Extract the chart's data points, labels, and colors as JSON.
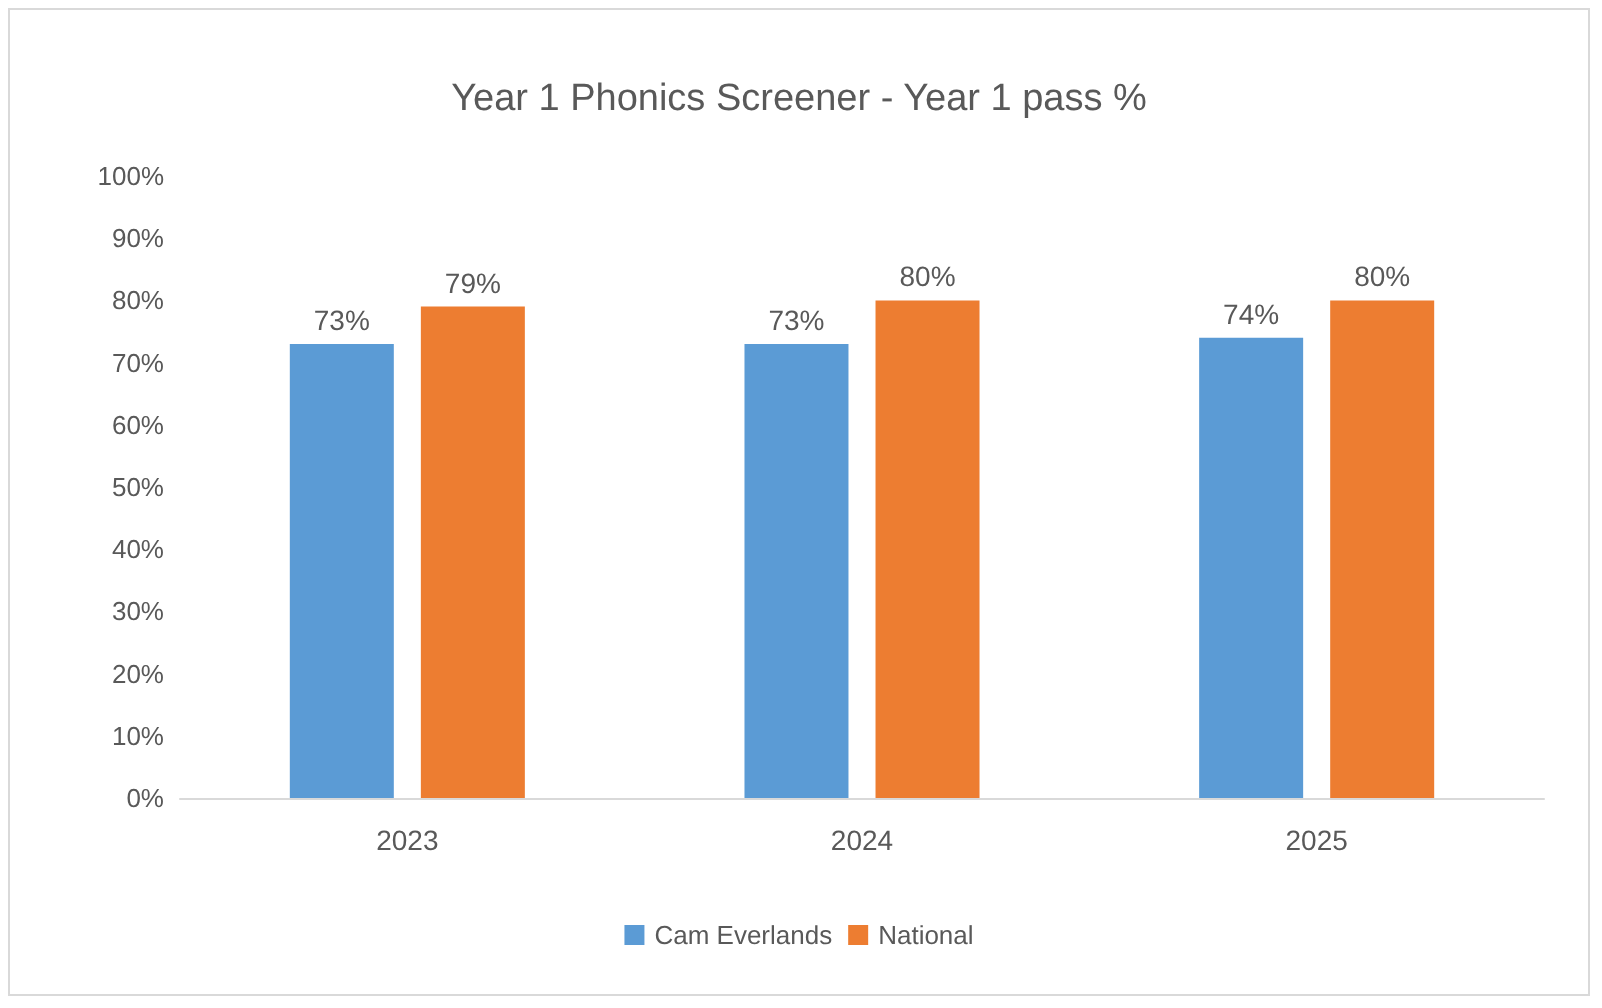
{
  "chart_data": {
    "type": "bar",
    "title": "Year 1 Phonics Screener - Year 1 pass %",
    "categories": [
      "2023",
      "2024",
      "2025"
    ],
    "series": [
      {
        "name": "Cam Everlands",
        "color": "#5b9bd5",
        "values": [
          73,
          73,
          74
        ],
        "value_labels": [
          "73%",
          "73%",
          "74%"
        ]
      },
      {
        "name": "National",
        "color": "#ed7d31",
        "values": [
          79,
          80,
          80
        ],
        "value_labels": [
          "79%",
          "80%",
          "80%"
        ]
      }
    ],
    "ylim": [
      0,
      100
    ],
    "yticks": [
      {
        "value": 0,
        "label": "0%"
      },
      {
        "value": 10,
        "label": "10%"
      },
      {
        "value": 20,
        "label": "20%"
      },
      {
        "value": 30,
        "label": "30%"
      },
      {
        "value": 40,
        "label": "40%"
      },
      {
        "value": 50,
        "label": "50%"
      },
      {
        "value": 60,
        "label": "60%"
      },
      {
        "value": 70,
        "label": "70%"
      },
      {
        "value": 80,
        "label": "80%"
      },
      {
        "value": 90,
        "label": "90%"
      },
      {
        "value": 100,
        "label": "100%"
      }
    ],
    "grid": false,
    "legend": "bottom"
  }
}
